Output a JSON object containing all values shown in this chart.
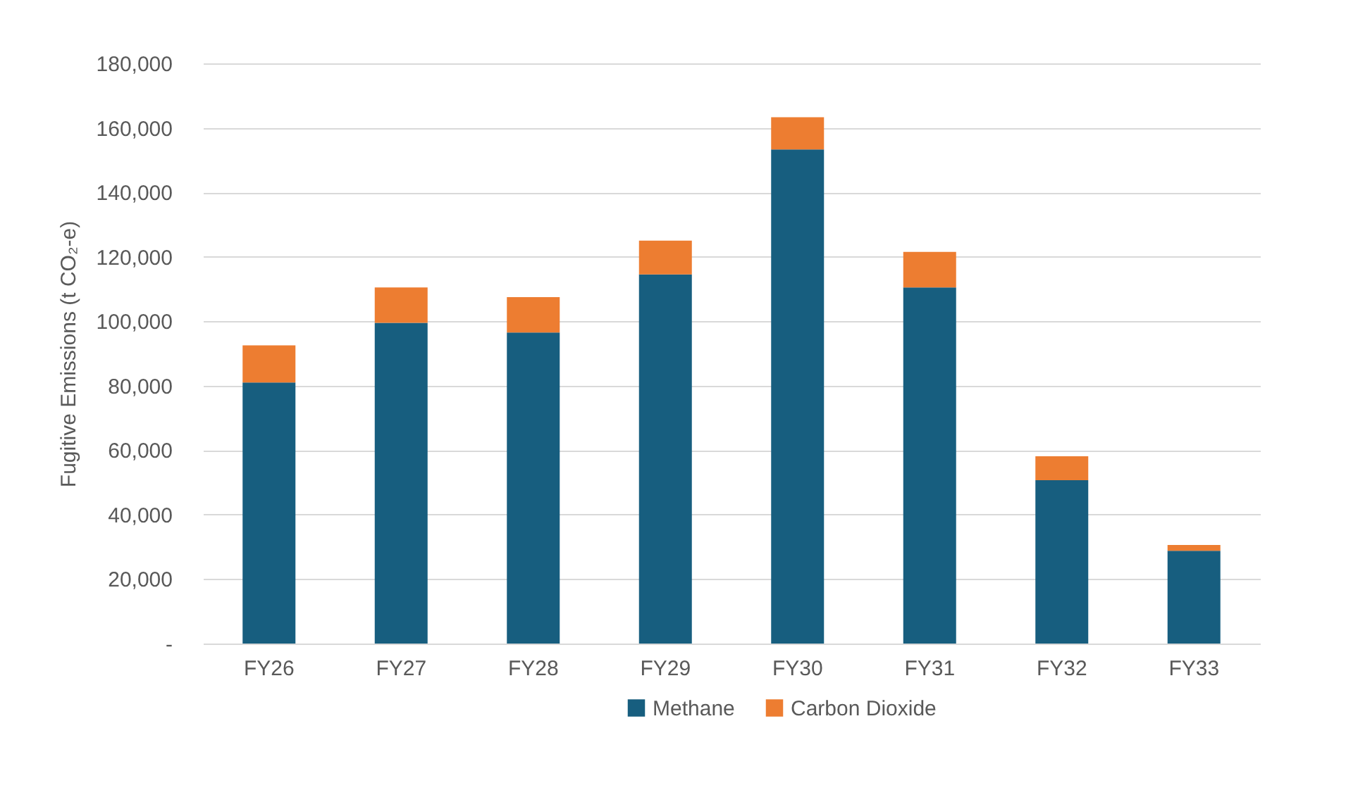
{
  "chart_data": {
    "type": "bar",
    "stacked": true,
    "ylabel": "Fugitive Emissions (t CO₂-e)",
    "categories": [
      "FY26",
      "FY27",
      "FY28",
      "FY29",
      "FY30",
      "FY31",
      "FY32",
      "FY33"
    ],
    "series": [
      {
        "name": "Methane",
        "color": "#175e7f",
        "values": [
          81000,
          99500,
          96500,
          114500,
          153300,
          110500,
          50700,
          28800
        ]
      },
      {
        "name": "Carbon Dioxide",
        "color": "#ed7d31",
        "values": [
          11500,
          11000,
          11000,
          10500,
          10000,
          11000,
          7400,
          1800
        ]
      }
    ],
    "ylim": [
      0,
      180000
    ],
    "yticks": [
      {
        "value": 0,
        "label": "-"
      },
      {
        "value": 20000,
        "label": "20,000"
      },
      {
        "value": 40000,
        "label": "40,000"
      },
      {
        "value": 60000,
        "label": "60,000"
      },
      {
        "value": 80000,
        "label": "80,000"
      },
      {
        "value": 100000,
        "label": "100,000"
      },
      {
        "value": 120000,
        "label": "120,000"
      },
      {
        "value": 140000,
        "label": "140,000"
      },
      {
        "value": 160000,
        "label": "160,000"
      },
      {
        "value": 180000,
        "label": "180,000"
      }
    ],
    "grid": "y",
    "legend": "bottom"
  }
}
